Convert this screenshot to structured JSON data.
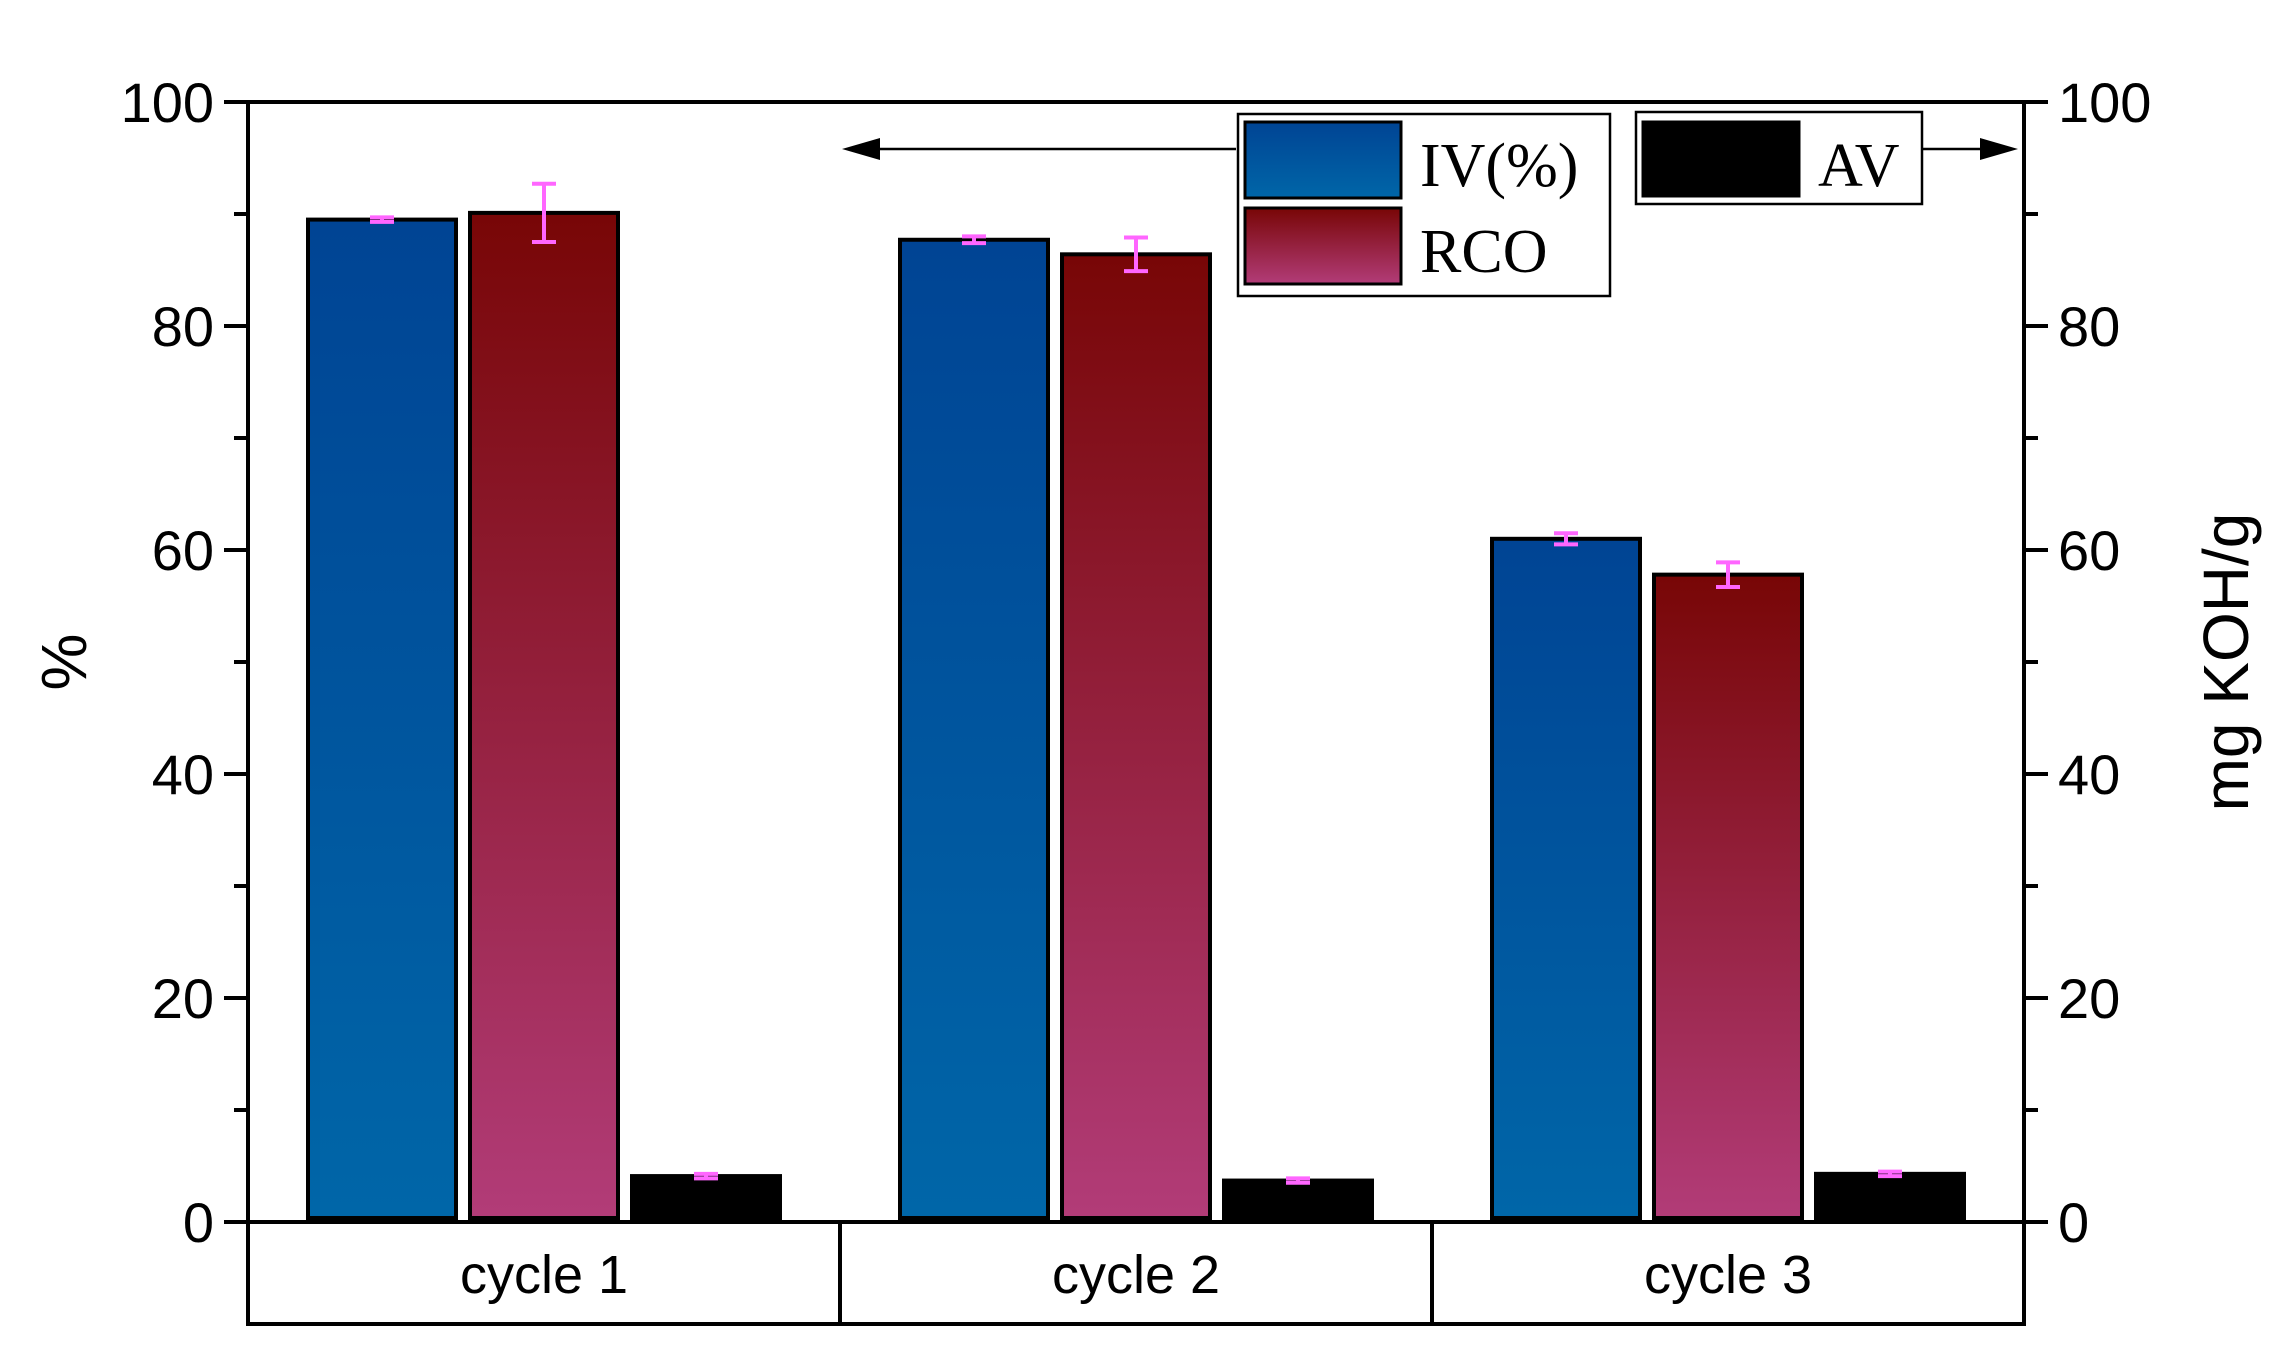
{
  "chart_data": {
    "type": "bar",
    "categories": [
      "cycle 1",
      "cycle 2",
      "cycle 3"
    ],
    "ylabel_left": "%",
    "ylabel_right": "mg KOH/g",
    "ylim_left": [
      0,
      100
    ],
    "ylim_right": [
      0,
      100
    ],
    "left_ticks": [
      "0",
      "20",
      "40",
      "60",
      "80",
      "100"
    ],
    "right_ticks": [
      "0",
      "20",
      "40",
      "60",
      "80",
      "100"
    ],
    "series": [
      {
        "name": "IV(%)",
        "axis": "left",
        "values": [
          89.5,
          87.7,
          61.0
        ],
        "errors": [
          0.2,
          0.3,
          0.5
        ],
        "gradient_top": "#004494",
        "gradient_bottom": "#0066a8"
      },
      {
        "name": "RCO",
        "axis": "left",
        "values": [
          90.1,
          86.4,
          57.8
        ],
        "errors": [
          2.6,
          1.5,
          1.1
        ],
        "gradient_top": "#780606",
        "gradient_bottom": "#b23c78"
      },
      {
        "name": "AV",
        "axis": "right",
        "values": [
          4.1,
          3.7,
          4.3
        ],
        "errors": [
          0.2,
          0.2,
          0.2
        ],
        "gradient_top": "#000000",
        "gradient_bottom": "#000000"
      }
    ],
    "error_bar_color": "#ff66ff",
    "legend_left_entries": [
      "IV(%)",
      "RCO"
    ],
    "legend_right_entries": [
      "AV"
    ],
    "legend_left_arrow": "points to left axis",
    "legend_right_arrow": "points to right axis"
  }
}
